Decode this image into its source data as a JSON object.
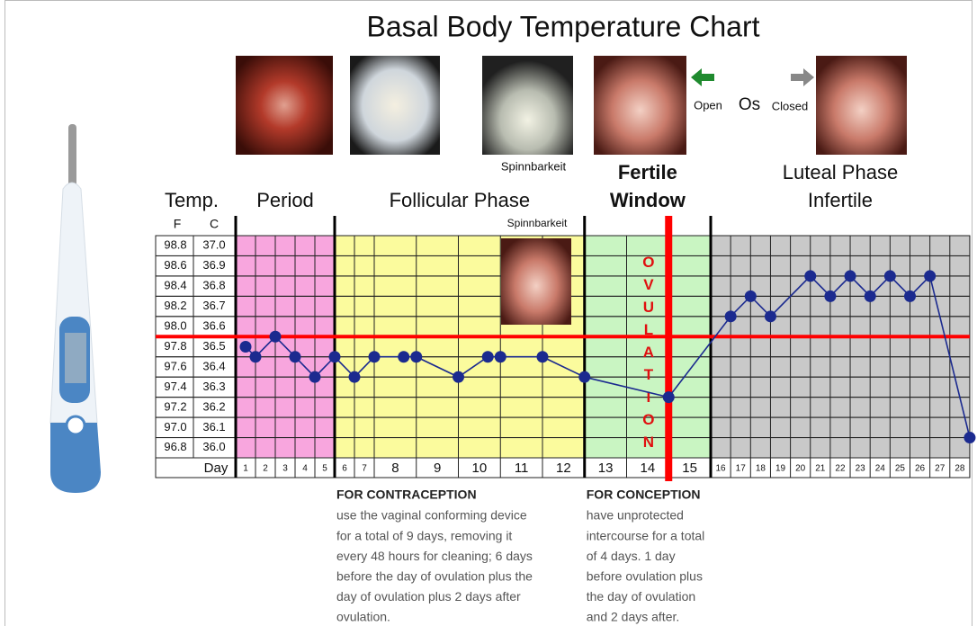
{
  "title": "Basal Body Temperature Chart",
  "top_caption": "Spinnbarkeit",
  "os": {
    "open": "Open",
    "label": "Os",
    "closed": "Closed"
  },
  "chart_data": {
    "type": "line",
    "y_label": "Temp.",
    "y_unit": "F",
    "y2_unit": "C",
    "x_label": "Day",
    "inset_caption": "Spinnbarkeit",
    "categories": [
      "1",
      "2",
      "3",
      "4",
      "5",
      "6",
      "7",
      "8",
      "9",
      "10",
      "11",
      "12",
      "13",
      "14",
      "15",
      "16",
      "17",
      "18",
      "19",
      "20",
      "21",
      "22",
      "23",
      "24",
      "25",
      "26",
      "27",
      "28"
    ],
    "phases": [
      {
        "label_lines": [
          "Period"
        ],
        "color": "#f8a6de"
      },
      {
        "label_lines": [
          "Follicular Phase"
        ],
        "color": "#fbfb9d"
      },
      {
        "label_lines": [
          "Fertile",
          "Window"
        ],
        "color": "#c9f5c2"
      },
      {
        "label_lines": [
          "Luteal Phase",
          "Infertile"
        ],
        "color": "#c9c9c9"
      }
    ],
    "ovulation": "OVULATION",
    "x": [
      1,
      1.5,
      2.5,
      3.5,
      4.5,
      5.5,
      6.5,
      7.5,
      8.2,
      8.5,
      9.5,
      10.2,
      10.5,
      11.5,
      12.5,
      14.5,
      16.5,
      17.5,
      18.5,
      20.5,
      21.5,
      22.5,
      23.5,
      24.5,
      25.5,
      26.5,
      28.5
    ],
    "series": [
      {
        "color": "#1b2a8f",
        "values": [
          97.8,
          97.7,
          97.9,
          97.7,
          97.5,
          97.7,
          97.5,
          97.7,
          97.7,
          97.7,
          97.5,
          97.7,
          97.7,
          97.7,
          97.5,
          97.3,
          98.1,
          98.3,
          98.1,
          98.5,
          98.3,
          98.5,
          98.3,
          98.5,
          98.3,
          98.5,
          96.9
        ]
      }
    ],
    "ylim": [
      96.7,
      98.9
    ],
    "yticks": [
      98.8,
      98.6,
      98.4,
      98.2,
      {
        "value": 98,
        "label": "98.0"
      },
      97.8,
      97.6,
      97.4,
      97.2,
      {
        "value": 97,
        "label": "97.0"
      },
      96.8
    ],
    "y2lim": [
      35.95,
      37.05
    ],
    "y2ticks": [
      {
        "value": 37,
        "label": "37.0"
      },
      36.9,
      36.8,
      36.7,
      36.6,
      36.5,
      36.4,
      36.3,
      36.2,
      36.1,
      {
        "value": 36,
        "label": "36.0"
      }
    ],
    "coverline": {
      "value": 97.9,
      "color": "#ff0000"
    }
  },
  "notes": [
    {
      "heading": "FOR CONTRACEPTION",
      "lines": [
        "use the vaginal conforming device",
        "for a total of 9 days, removing it",
        "every 48 hours for cleaning; 6 days",
        "before the day of ovulation plus the",
        "day of ovulation plus 2 days after",
        "ovulation."
      ]
    },
    {
      "heading": "FOR CONCEPTION",
      "lines": [
        "have unprotected",
        "intercourse for a total",
        "of 4 days. 1 day",
        "before ovulation plus",
        "the day of ovulation",
        "and 2 days after."
      ]
    }
  ]
}
